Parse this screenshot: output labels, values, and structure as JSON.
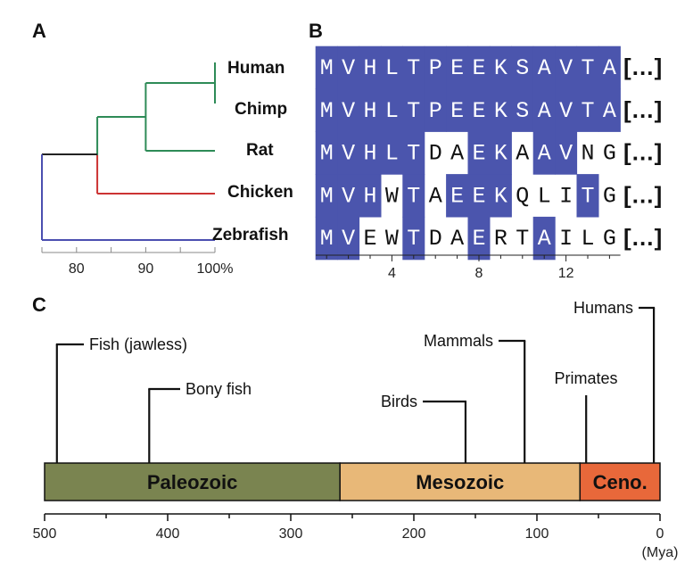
{
  "panels": {
    "a": "A",
    "b": "B",
    "c": "C"
  },
  "colors": {
    "mammal_branch": "#2e8b57",
    "bird_branch": "#cc3333",
    "fish_branch": "#4b4fb0",
    "root_branch": "#222222",
    "alignment_highlight": "#4b55ad",
    "paleozoic": "#7a8450",
    "mesozoic": "#e8b878",
    "cenozoic": "#e8683a"
  },
  "tree": {
    "taxa": [
      "Human",
      "Chimp",
      "Rat",
      "Chicken",
      "Zebrafish"
    ],
    "axis_ticks": [
      "80",
      "90",
      "100%"
    ],
    "tick_values": [
      80,
      90,
      100
    ],
    "axis_range": [
      75,
      100
    ],
    "nodes": {
      "human_chimp": 100,
      "mammals": 90,
      "amniotes": 83,
      "root": 75
    }
  },
  "alignment": {
    "sequences": [
      {
        "name": "Human",
        "residues": "MVHLTPEEKSAVTA",
        "conserved": [
          1,
          1,
          1,
          1,
          1,
          1,
          1,
          1,
          1,
          1,
          1,
          1,
          1,
          1
        ]
      },
      {
        "name": "Chimp",
        "residues": "MVHLTPEEKSAVTA",
        "conserved": [
          1,
          1,
          1,
          1,
          1,
          1,
          1,
          1,
          1,
          1,
          1,
          1,
          1,
          1
        ]
      },
      {
        "name": "Rat",
        "residues": "MVHLTDAEKAAVNG",
        "conserved": [
          1,
          1,
          1,
          1,
          1,
          0,
          0,
          1,
          1,
          0,
          1,
          1,
          0,
          0
        ]
      },
      {
        "name": "Chicken",
        "residues": "MVHWTAEEKQLITG",
        "conserved": [
          1,
          1,
          1,
          0,
          1,
          0,
          1,
          1,
          1,
          0,
          0,
          0,
          1,
          0
        ]
      },
      {
        "name": "Zebrafish",
        "residues": "MVEWTDAERTAILG",
        "conserved": [
          1,
          1,
          0,
          0,
          1,
          0,
          0,
          1,
          0,
          0,
          1,
          0,
          0,
          0
        ]
      }
    ],
    "continuation": "[…]",
    "axis_ticks": [
      "4",
      "8",
      "12"
    ],
    "tick_positions": [
      4,
      8,
      12
    ]
  },
  "timeline": {
    "axis_ticks": [
      "500",
      "400",
      "300",
      "200",
      "100",
      "0"
    ],
    "tick_values": [
      500,
      400,
      300,
      200,
      100,
      0
    ],
    "unit": "(Mya)",
    "range": [
      500,
      0
    ],
    "eras": [
      {
        "name": "Paleozoic",
        "start": 500,
        "end": 260
      },
      {
        "name": "Mesozoic",
        "start": 260,
        "end": 65
      },
      {
        "name": "Ceno.",
        "start": 65,
        "end": 0
      }
    ],
    "events": [
      {
        "label": "Fish (jawless)",
        "mya": 490
      },
      {
        "label": "Bony fish",
        "mya": 415
      },
      {
        "label": "Birds",
        "mya": 158
      },
      {
        "label": "Mammals",
        "mya": 110
      },
      {
        "label": "Primates",
        "mya": 60
      },
      {
        "label": "Humans",
        "mya": 5
      }
    ]
  }
}
